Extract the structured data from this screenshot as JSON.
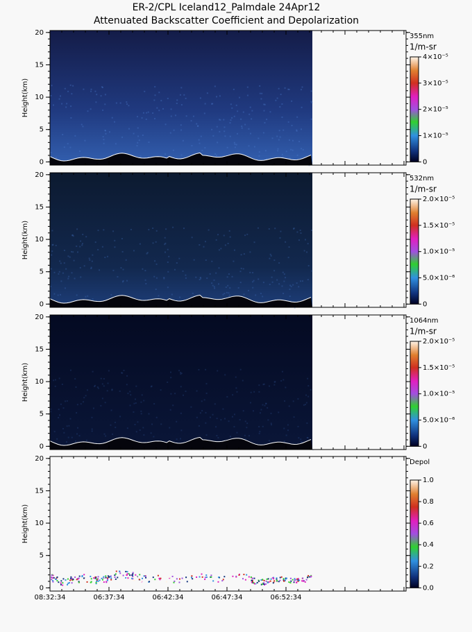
{
  "title": "ER-2/CPL Iceland12_Palmdale 24Apr12",
  "subtitle": "Attenuated Backscatter Coefficient and Depolarization",
  "chart_data": [
    {
      "type": "heatmap",
      "ylabel": "Height(km)",
      "ylim": [
        -0.5,
        20.3
      ],
      "yticks": [
        0,
        5,
        10,
        15,
        20
      ],
      "colorbar_label": "355nm",
      "colorbar_units": "1/m-sr",
      "colorbar_lim": [
        0,
        4e-05
      ],
      "colorbar_ticks": [
        0,
        {
          "value": 1e-05,
          "label": "1×10⁻⁵"
        },
        {
          "value": 2e-05,
          "label": "2×10⁻⁵"
        },
        {
          "value": 3e-05,
          "label": "3×10⁻⁵"
        },
        {
          "value": 4e-05,
          "label": "4×10⁻⁵"
        }
      ]
    },
    {
      "type": "heatmap",
      "ylabel": "Height(km)",
      "ylim": [
        -0.5,
        20.3
      ],
      "yticks": [
        0,
        5,
        10,
        15,
        20
      ],
      "colorbar_label": "532nm",
      "colorbar_units": "1/m-sr",
      "colorbar_lim": [
        0,
        2e-05
      ],
      "colorbar_ticks": [
        0,
        {
          "value": 5e-06,
          "label": "5.0×10⁻⁶"
        },
        {
          "value": 1e-05,
          "label": "1.0×10⁻⁵"
        },
        {
          "value": 1.5e-05,
          "label": "1.5×10⁻⁵"
        },
        {
          "value": 2e-05,
          "label": "2.0×10⁻⁵"
        }
      ]
    },
    {
      "type": "heatmap",
      "ylabel": "Height(km)",
      "ylim": [
        -0.5,
        20.3
      ],
      "yticks": [
        0,
        5,
        10,
        15,
        20
      ],
      "colorbar_label": "1064nm",
      "colorbar_units": "1/m-sr",
      "colorbar_lim": [
        0,
        2e-05
      ],
      "colorbar_ticks": [
        0,
        {
          "value": 5e-06,
          "label": "5.0×10⁻⁶"
        },
        {
          "value": 1e-05,
          "label": "1.0×10⁻⁵"
        },
        {
          "value": 1.5e-05,
          "label": "1.5×10⁻⁵"
        },
        {
          "value": 2e-05,
          "label": "2.0×10⁻⁵"
        }
      ]
    },
    {
      "type": "depol",
      "ylabel": "Height(km)",
      "ylim": [
        -0.5,
        20.3
      ],
      "yticks": [
        0,
        5,
        10,
        15,
        20
      ],
      "colorbar_label": "Depol",
      "colorbar_lim": [
        0,
        1
      ],
      "colorbar_ticks": [
        {
          "value": 0,
          "label": "0.0"
        },
        0.2,
        0.4,
        0.6,
        0.8,
        {
          "value": 1,
          "label": "1.0"
        }
      ],
      "categories": [
        "08:32:34",
        "06:37:34",
        "06:42:34",
        "06:47:34",
        "06:52:34"
      ]
    }
  ]
}
